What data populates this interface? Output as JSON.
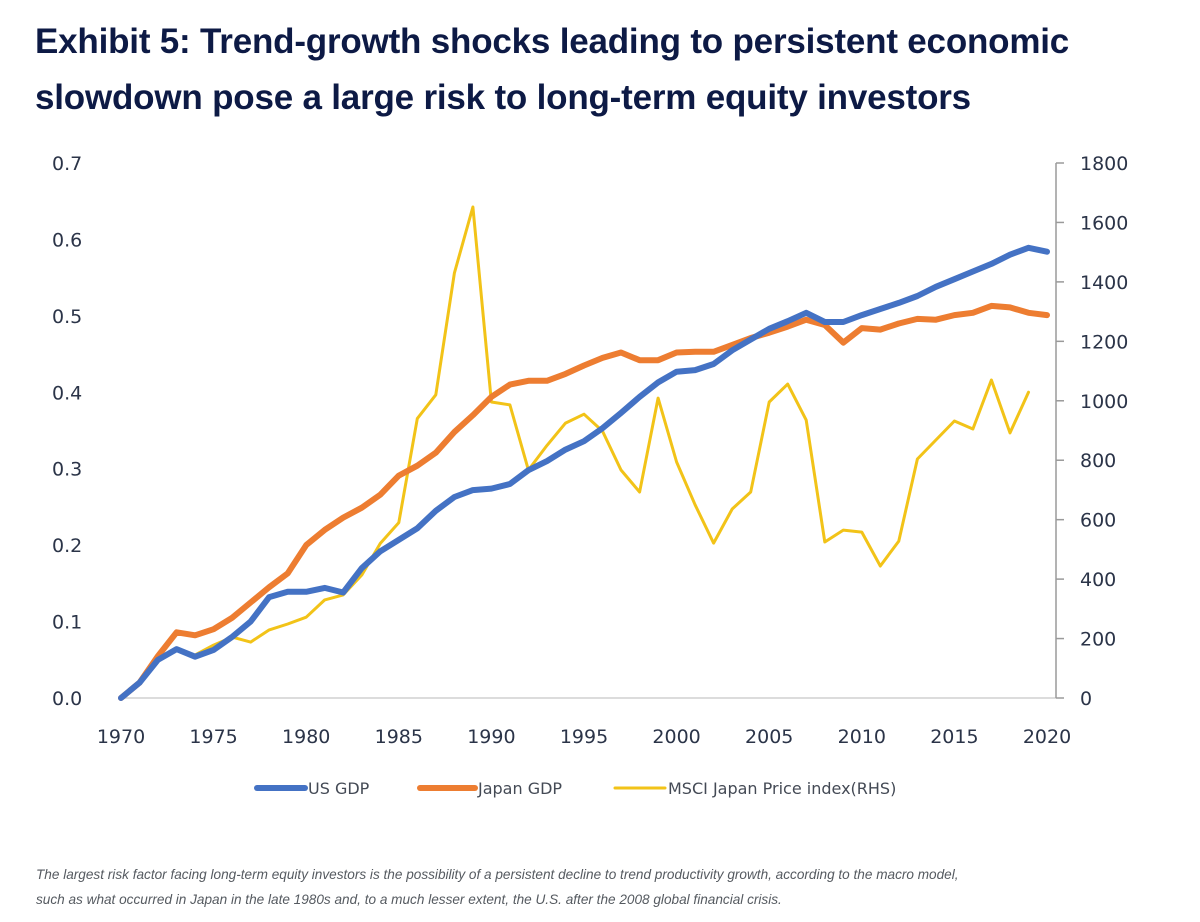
{
  "title_lines": [
    "Exhibit 5: Trend-growth shocks leading to persistent economic",
    "slowdown pose a large risk to long-term equity investors"
  ],
  "caption_lines": [
    "The largest risk factor facing long-term equity investors is the possibility of a persistent decline to trend productivity growth, according to the macro model,",
    "such as what occurred in Japan in the late 1980s and, to a much lesser extent, the U.S. after the 2008 global financial crisis."
  ],
  "chart_data": {
    "type": "line",
    "title": "Exhibit 5: Trend-growth shocks leading to persistent economic slowdown pose a large risk to long-term equity investors",
    "xlabel": "",
    "ylabel": "",
    "y2label": "",
    "xlim": [
      1970,
      2020
    ],
    "ylim": [
      0,
      0.7
    ],
    "y2lim": [
      0,
      1800
    ],
    "x_ticks": [
      "1970",
      "1975",
      "1980",
      "1985",
      "1990",
      "1995",
      "2000",
      "2005",
      "2010",
      "2015",
      "2020"
    ],
    "y_ticks": [
      "0.0",
      "0.1",
      "0.2",
      "0.3",
      "0.4",
      "0.5",
      "0.6",
      "0.7"
    ],
    "y2_ticks": [
      "0",
      "200",
      "400",
      "600",
      "800",
      "1000",
      "1200",
      "1400",
      "1600",
      "1800"
    ],
    "grid": false,
    "legend_position": "bottom-center",
    "series": [
      {
        "name": "US GDP",
        "axis": "left",
        "color": "#4472c4",
        "x_start": 1970,
        "values": [
          0.0,
          0.02,
          0.05,
          0.064,
          0.054,
          0.063,
          0.08,
          0.1,
          0.132,
          0.139,
          0.139,
          0.144,
          0.138,
          0.17,
          0.192,
          0.207,
          0.222,
          0.245,
          0.263,
          0.272,
          0.274,
          0.28,
          0.298,
          0.31,
          0.325,
          0.336,
          0.353,
          0.373,
          0.394,
          0.413,
          0.427,
          0.429,
          0.437,
          0.455,
          0.469,
          0.483,
          0.493,
          0.504,
          0.492,
          0.492,
          0.501,
          0.509,
          0.517,
          0.526,
          0.538,
          0.548,
          0.558,
          0.568,
          0.58,
          0.589,
          0.584
        ]
      },
      {
        "name": "Japan GDP",
        "axis": "left",
        "color": "#ed7d31",
        "x_start": 1970,
        "values": [
          0.0,
          0.02,
          0.055,
          0.086,
          0.082,
          0.09,
          0.105,
          0.125,
          0.145,
          0.163,
          0.2,
          0.22,
          0.236,
          0.249,
          0.266,
          0.291,
          0.304,
          0.321,
          0.348,
          0.37,
          0.394,
          0.41,
          0.415,
          0.415,
          0.424,
          0.435,
          0.445,
          0.452,
          0.442,
          0.442,
          0.452,
          0.453,
          0.453,
          0.462,
          0.471,
          0.478,
          0.486,
          0.495,
          0.488,
          0.465,
          0.484,
          0.482,
          0.49,
          0.496,
          0.495,
          0.501,
          0.504,
          0.513,
          0.511,
          0.504,
          0.501
        ]
      },
      {
        "name": "MSCI Japan Price index(RHS)",
        "axis": "right",
        "color": "#f2c318",
        "x_start": 1974,
        "values": [
          145,
          178,
          205,
          188,
          229,
          249,
          272,
          330,
          347,
          414,
          520,
          590,
          940,
          1020,
          1430,
          1652,
          996,
          986,
          767,
          850,
          925,
          955,
          898,
          767,
          693,
          1009,
          794,
          650,
          521,
          636,
          693,
          996,
          1056,
          935,
          525,
          565,
          558,
          444,
          528,
          804,
          868,
          932,
          905,
          1070,
          892,
          1029
        ]
      }
    ]
  }
}
